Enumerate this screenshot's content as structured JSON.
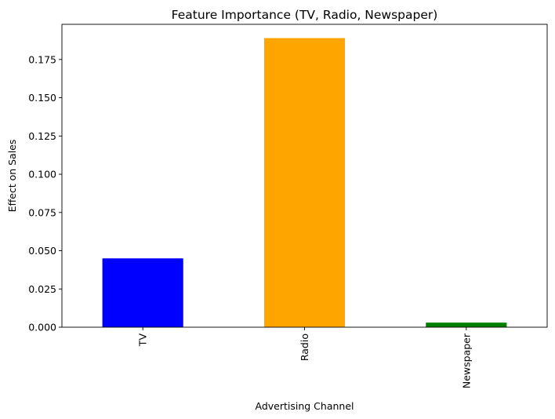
{
  "chart_data": {
    "type": "bar",
    "title": "Feature Importance (TV, Radio, Newspaper)",
    "xlabel": "Advertising Channel",
    "ylabel": "Effect on Sales",
    "categories": [
      "TV",
      "Radio",
      "Newspaper"
    ],
    "values": [
      0.045,
      0.189,
      0.003
    ],
    "colors": [
      "#0000ff",
      "#ffa500",
      "#008000"
    ],
    "ylim": [
      0,
      0.198
    ],
    "yticks": [
      0.0,
      0.025,
      0.05,
      0.075,
      0.1,
      0.125,
      0.15,
      0.175
    ],
    "ytick_labels": [
      "0.000",
      "0.025",
      "0.050",
      "0.075",
      "0.100",
      "0.125",
      "0.150",
      "0.175"
    ],
    "grid": false,
    "legend": false
  }
}
